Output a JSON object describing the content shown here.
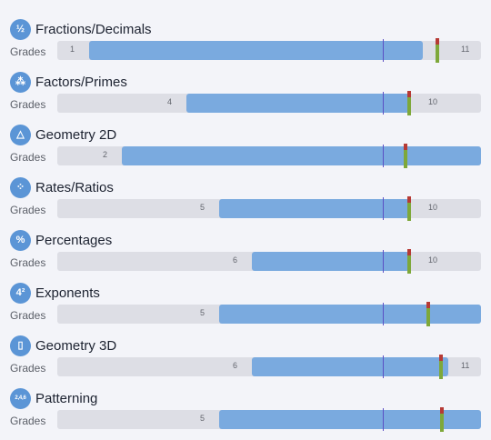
{
  "topics": [
    {
      "title": "Fractions/Decimals",
      "icon": "fraction-icon",
      "glyph": "½",
      "grades_label": "Grades",
      "start_grade": "1",
      "end_grade": "11"
    },
    {
      "title": "Factors/Primes",
      "icon": "factor-tree-icon",
      "glyph": "⁂",
      "grades_label": "Grades",
      "start_grade": "4",
      "end_grade": "10"
    },
    {
      "title": "Geometry 2D",
      "icon": "shapes-2d-icon",
      "glyph": "△",
      "grades_label": "Grades",
      "start_grade": "2",
      "end_grade": ""
    },
    {
      "title": "Rates/Ratios",
      "icon": "ratio-dots-icon",
      "glyph": "⁘",
      "grades_label": "Grades",
      "start_grade": "5",
      "end_grade": "10"
    },
    {
      "title": "Percentages",
      "icon": "percent-icon",
      "glyph": "%",
      "grades_label": "Grades",
      "start_grade": "6",
      "end_grade": "10"
    },
    {
      "title": "Exponents",
      "icon": "exponent-icon",
      "glyph": "4²",
      "grades_label": "Grades",
      "start_grade": "5",
      "end_grade": ""
    },
    {
      "title": "Geometry 3D",
      "icon": "cylinder-icon",
      "glyph": "▯",
      "grades_label": "Grades",
      "start_grade": "6",
      "end_grade": "11"
    },
    {
      "title": "Patterning",
      "icon": "pattern-sequence-icon",
      "glyph": "2,4,6",
      "grades_label": "Grades",
      "start_grade": "5",
      "end_grade": ""
    }
  ]
}
